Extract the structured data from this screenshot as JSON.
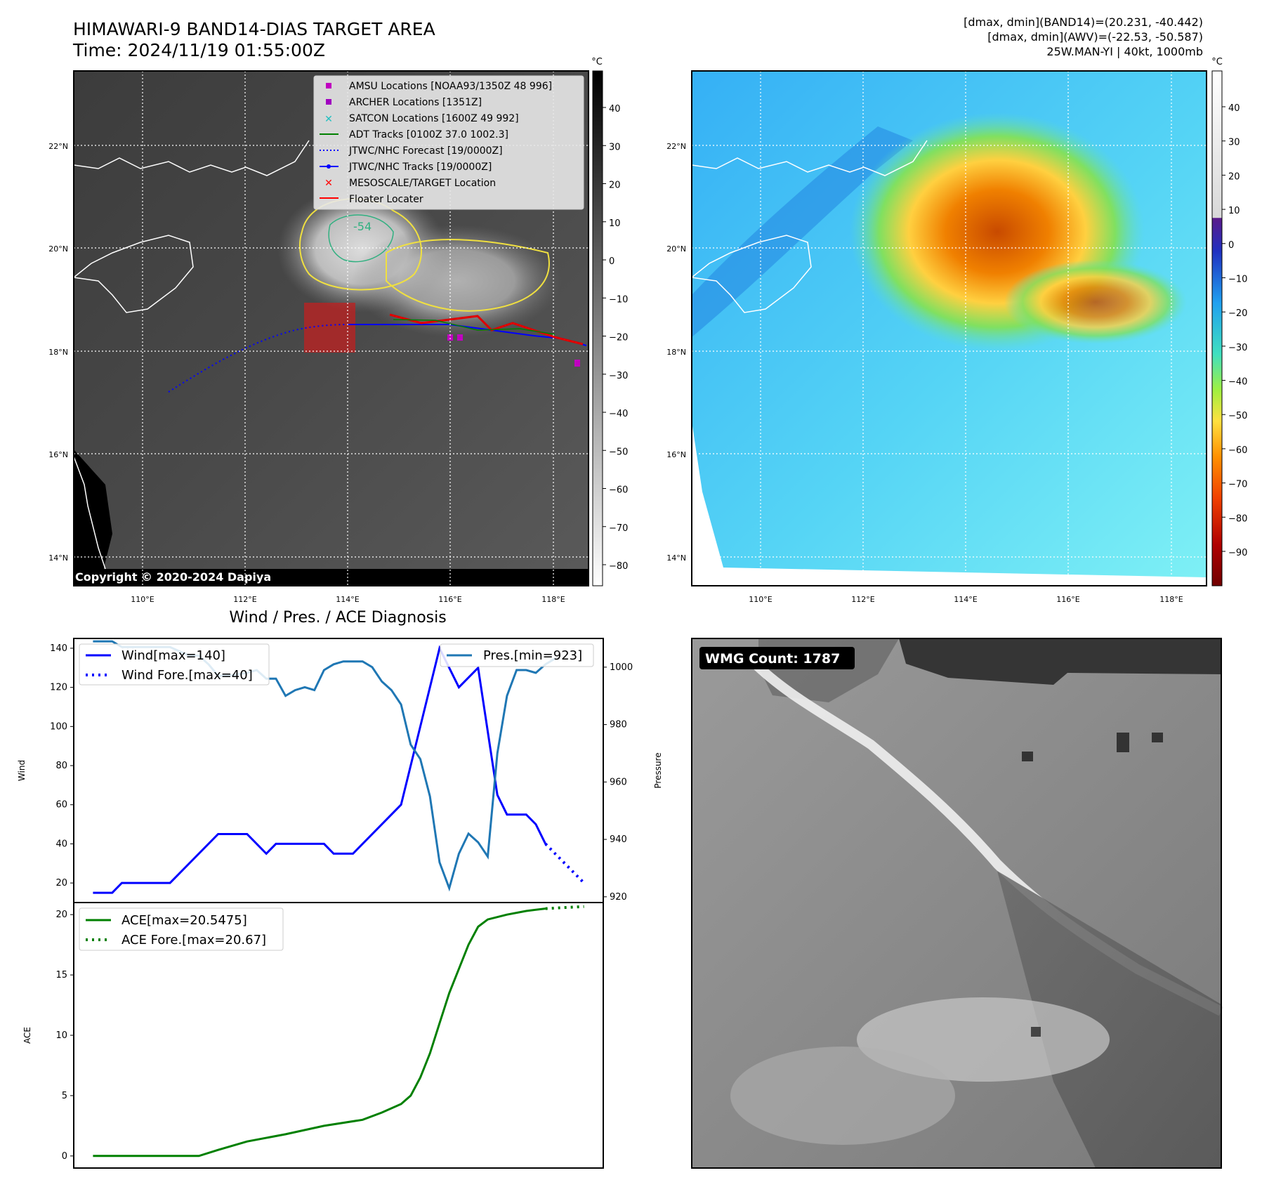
{
  "header": {
    "title_line1": "HIMAWARI-9 BAND14-DIAS TARGET AREA",
    "title_line2": "Time: 2024/11/19 01:55:00Z",
    "info_line1": "[dmax, dmin](BAND14)=(20.231, -40.442)",
    "info_line2": "[dmax, dmin](AWV)=(-22.53, -50.587)",
    "info_line3": "25W.MAN-YI | 40kt, 1000mb"
  },
  "map": {
    "lat_labels": [
      "22°N",
      "20°N",
      "18°N",
      "16°N",
      "14°N"
    ],
    "lon_labels": [
      "110°E",
      "112°E",
      "114°E",
      "116°E",
      "118°E"
    ],
    "contour_label": "-54",
    "copyright": "Copyright © 2020-2024 Dapiya",
    "legend": [
      "AMSU Locations [NOAA93/1350Z 48 996]",
      "ARCHER Locations [1351Z]",
      "SATCON Locations [1600Z 49 992]",
      "ADT Tracks [0100Z 37.0 1002.3]",
      "JTWC/NHC Forecast [19/0000Z]",
      "JTWC/NHC Tracks [19/0000Z]",
      "MESOSCALE/TARGET Location",
      "Floater Locater"
    ],
    "colors": {
      "amsu": "#c000c0",
      "archer": "#a000c0",
      "satcon": "#20c0c0",
      "adt": "#008000",
      "forecast": "#0000ff",
      "track": "#0000ff",
      "target": "#ff0000",
      "floater": "#ff0000"
    }
  },
  "colorbar_ir": {
    "unit": "°C",
    "ticks": [
      "40",
      "30",
      "20",
      "10",
      "0",
      "−10",
      "−20",
      "−30",
      "−40",
      "−50",
      "−60",
      "−70",
      "−80"
    ]
  },
  "colorbar_wv": {
    "unit": "°C",
    "ticks": [
      "40",
      "30",
      "20",
      "10",
      "0",
      "−10",
      "−20",
      "−30",
      "−40",
      "−50",
      "−60",
      "−70",
      "−80",
      "−90"
    ]
  },
  "wmg": {
    "label": "WMG Count: 1787"
  },
  "chart_data": {
    "type": "line",
    "title": "Wind / Pres. / ACE Diagnosis",
    "wind_pressure": {
      "ylabel_left": "Wind",
      "ylabel_right": "Pressure",
      "ylim_left": [
        10,
        145
      ],
      "ylim_right": [
        918,
        1010
      ],
      "yticks_left": [
        20,
        40,
        60,
        80,
        100,
        120,
        140
      ],
      "yticks_right": [
        920,
        940,
        960,
        980,
        1000
      ],
      "series": [
        {
          "name": "Wind[max=140]",
          "axis": "left",
          "color": "#0000ff",
          "style": "solid",
          "values": [
            [
              0,
              15
            ],
            [
              2,
              15
            ],
            [
              3,
              20
            ],
            [
              4,
              20
            ],
            [
              8,
              20
            ],
            [
              13,
              45
            ],
            [
              16,
              45
            ],
            [
              18,
              35
            ],
            [
              19,
              40
            ],
            [
              24,
              40
            ],
            [
              25,
              35
            ],
            [
              27,
              35
            ],
            [
              32,
              60
            ],
            [
              34,
              100
            ],
            [
              36,
              140
            ],
            [
              38,
              120
            ],
            [
              39,
              125
            ],
            [
              40,
              130
            ],
            [
              42,
              65
            ],
            [
              43,
              55
            ],
            [
              45,
              55
            ],
            [
              46,
              50
            ],
            [
              47,
              40
            ]
          ]
        },
        {
          "name": "Wind Fore.[max=40]",
          "axis": "left",
          "color": "#0000ff",
          "style": "dotted",
          "values": [
            [
              47,
              40
            ],
            [
              51,
              20
            ]
          ]
        },
        {
          "name": "Pres.[min=923]",
          "axis": "right",
          "color": "#1f77b4",
          "style": "solid",
          "values": [
            [
              0,
              1009
            ],
            [
              2,
              1009
            ],
            [
              3,
              1007
            ],
            [
              4,
              1007
            ],
            [
              8,
              1007
            ],
            [
              10,
              1004
            ],
            [
              11,
              1004
            ],
            [
              12,
              1001
            ],
            [
              13,
              997
            ],
            [
              14,
              997
            ],
            [
              16,
              998
            ],
            [
              17,
              999
            ],
            [
              18,
              996
            ],
            [
              19,
              996
            ],
            [
              20,
              990
            ],
            [
              21,
              992
            ],
            [
              22,
              993
            ],
            [
              23,
              992
            ],
            [
              24,
              999
            ],
            [
              25,
              1001
            ],
            [
              26,
              1002
            ],
            [
              28,
              1002
            ],
            [
              29,
              1000
            ],
            [
              30,
              995
            ],
            [
              31,
              992
            ],
            [
              32,
              987
            ],
            [
              33,
              973
            ],
            [
              34,
              968
            ],
            [
              35,
              955
            ],
            [
              36,
              932
            ],
            [
              37,
              923
            ],
            [
              38,
              935
            ],
            [
              39,
              942
            ],
            [
              40,
              939
            ],
            [
              41,
              934
            ],
            [
              42,
              970
            ],
            [
              43,
              990
            ],
            [
              44,
              999
            ],
            [
              45,
              999
            ],
            [
              46,
              998
            ],
            [
              47,
              1001
            ],
            [
              48,
              1003
            ]
          ]
        }
      ]
    },
    "ace": {
      "ylabel": "ACE",
      "ylim": [
        -1,
        21
      ],
      "yticks": [
        0,
        5,
        10,
        15,
        20
      ],
      "series": [
        {
          "name": "ACE[max=20.5475]",
          "color": "#008000",
          "style": "solid",
          "values": [
            [
              0,
              0
            ],
            [
              11,
              0
            ],
            [
              13,
              0.5
            ],
            [
              16,
              1.2
            ],
            [
              20,
              1.8
            ],
            [
              24,
              2.5
            ],
            [
              28,
              3.0
            ],
            [
              30,
              3.6
            ],
            [
              32,
              4.3
            ],
            [
              33,
              5
            ],
            [
              34,
              6.5
            ],
            [
              35,
              8.5
            ],
            [
              36,
              11
            ],
            [
              37,
              13.5
            ],
            [
              38,
              15.5
            ],
            [
              39,
              17.5
            ],
            [
              40,
              19
            ],
            [
              41,
              19.6
            ],
            [
              43,
              20
            ],
            [
              45,
              20.3
            ],
            [
              47,
              20.5
            ]
          ]
        },
        {
          "name": "ACE Fore.[max=20.67]",
          "color": "#008000",
          "style": "dotted",
          "values": [
            [
              47,
              20.5
            ],
            [
              51,
              20.67
            ]
          ]
        }
      ]
    }
  }
}
